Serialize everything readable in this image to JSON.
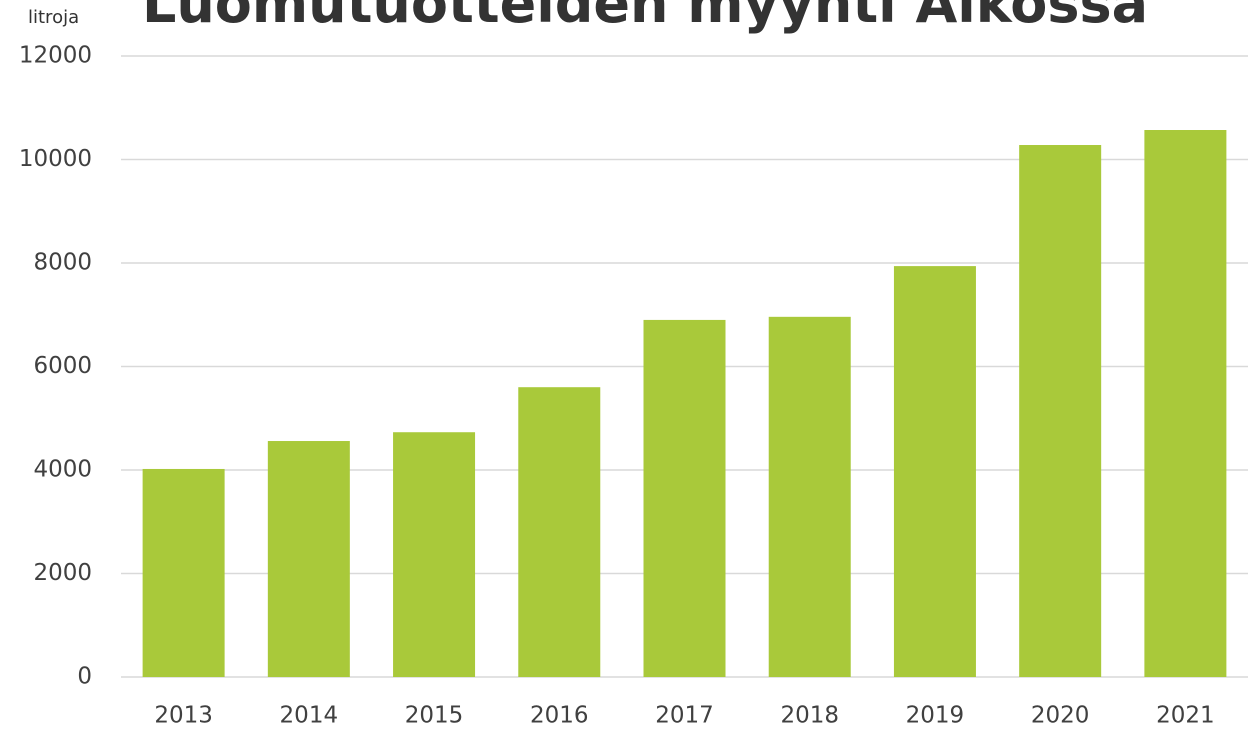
{
  "chart_data": {
    "type": "bar",
    "title": "Luomutuotteiden myynti Alkossa",
    "y_label": "litroja",
    "categories": [
      "2013",
      "2014",
      "2015",
      "2016",
      "2017",
      "2018",
      "2019",
      "2020",
      "2021"
    ],
    "values": [
      4020,
      4560,
      4730,
      5600,
      6900,
      6960,
      7940,
      10280,
      10570
    ],
    "color": "#a9c93a",
    "ylim": [
      0,
      12000
    ],
    "yticks": [
      0,
      2000,
      4000,
      6000,
      8000,
      10000,
      12000
    ],
    "grid": true
  }
}
